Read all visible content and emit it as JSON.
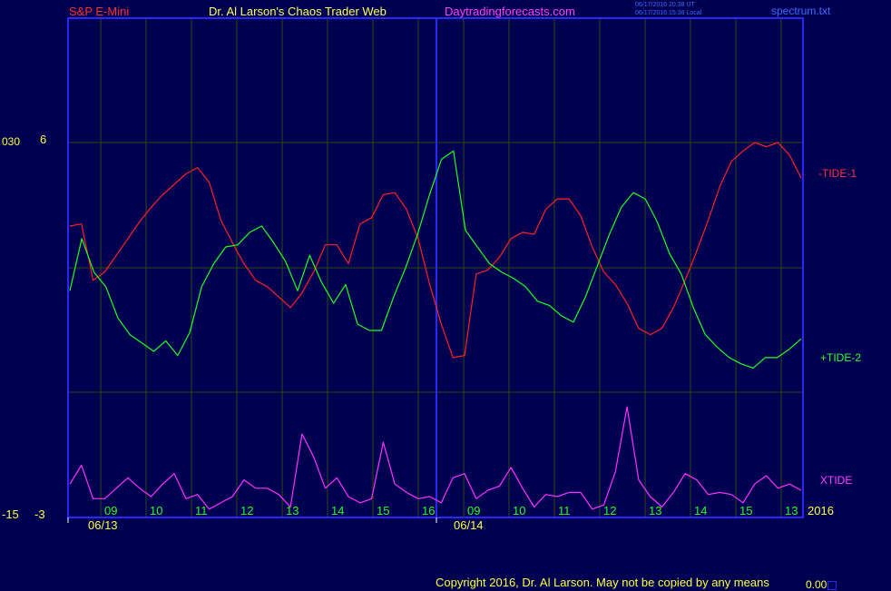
{
  "header": {
    "instrument": "S&P E-Mini",
    "site": "Dr. Al Larson's Chaos Trader Web",
    "url": "Daytradingforecasts.com",
    "timestamp_ut": "06/17/2016 20:38 UT",
    "timestamp_local": "06/17/2016 15:38 Local",
    "file": "spectrum.txt"
  },
  "footer": {
    "copyright": "Copyright 2016, Dr. Al Larson. May not be copied by any means",
    "corner_value": "0.00"
  },
  "colors": {
    "background": "#000050",
    "frame": "#2828ff",
    "grid": "#2b4a10",
    "tide1": "#ff2020",
    "tide2": "#20ff20",
    "xtide": "#ff30ff",
    "axis_text": "#ffff40",
    "hour_text": "#20ff20"
  },
  "chart_data": {
    "type": "line",
    "title": "",
    "xlabel": "",
    "ylabel": "",
    "grid": true,
    "y_left_labels": {
      "top_a": "030",
      "top_b": "6",
      "bottom_a": "-15",
      "bottom_b": "-3"
    },
    "year_label": "2016",
    "date_labels": [
      "06/13",
      "06/14"
    ],
    "hour_ticks": [
      "09",
      "10",
      "11",
      "12",
      "13",
      "14",
      "15",
      "16",
      "09",
      "10",
      "11",
      "12",
      "13",
      "14",
      "15",
      "13"
    ],
    "series": [
      {
        "name": "-TIDE-1",
        "upper_panel": true,
        "values": [
          2.0,
          2.1,
          -0.6,
          -0.2,
          0.6,
          1.4,
          2.2,
          2.9,
          3.5,
          4.0,
          4.5,
          4.8,
          4.1,
          2.3,
          1.2,
          0.2,
          -0.6,
          -0.9,
          -1.4,
          -1.9,
          -1.2,
          -0.2,
          1.1,
          1.1,
          0.2,
          2.1,
          2.4,
          3.5,
          3.6,
          2.8,
          1.4,
          -0.8,
          -2.7,
          -4.3,
          -4.2,
          -0.3,
          -0.1,
          0.5,
          1.4,
          1.7,
          1.6,
          2.8,
          3.3,
          3.3,
          2.5,
          1.0,
          -0.2,
          -0.8,
          -1.7,
          -2.9,
          -3.2,
          -2.9,
          -1.9,
          -0.6,
          0.8,
          2.3,
          3.9,
          5.1,
          5.6,
          6.0,
          5.8,
          6.0,
          5.4,
          4.3
        ]
      },
      {
        "name": "+TIDE-2",
        "upper_panel": true,
        "values": [
          -1.1,
          1.4,
          -0.2,
          -0.9,
          -2.4,
          -3.2,
          -3.6,
          -4.0,
          -3.5,
          -4.2,
          -3.1,
          -0.9,
          0.2,
          1.0,
          1.1,
          1.7,
          2.0,
          1.2,
          0.3,
          -1.1,
          0.6,
          -0.7,
          -1.7,
          -0.8,
          -2.7,
          -3.0,
          -3.0,
          -1.4,
          0.0,
          1.6,
          3.5,
          5.2,
          5.6,
          1.8,
          1.0,
          0.2,
          -0.2,
          -0.5,
          -0.9,
          -1.6,
          -1.8,
          -2.3,
          -2.6,
          -1.4,
          0.1,
          1.6,
          2.9,
          3.6,
          3.3,
          2.2,
          0.7,
          -0.3,
          -1.9,
          -3.2,
          -3.8,
          -4.3,
          -4.6,
          -4.8,
          -4.3,
          -4.3,
          -3.9,
          -3.4
        ]
      },
      {
        "name": "XTIDE",
        "upper_panel": false,
        "values": [
          -1.4,
          -0.5,
          -2.1,
          -2.1,
          -1.6,
          -1.1,
          -1.6,
          -2.0,
          -1.4,
          -0.9,
          -2.1,
          -1.9,
          -2.6,
          -2.3,
          -2.0,
          -1.2,
          -1.6,
          -1.6,
          -1.9,
          -2.5,
          1.0,
          -0.1,
          -1.6,
          -1.1,
          -2.0,
          -2.3,
          -2.1,
          0.6,
          -1.4,
          -1.8,
          -2.1,
          -2.0,
          -2.3,
          -1.1,
          -0.9,
          -2.1,
          -1.7,
          -1.5,
          -0.6,
          -1.6,
          -2.5,
          -1.9,
          -2.0,
          -1.8,
          -1.8,
          -2.6,
          -2.4,
          -0.8,
          2.3,
          -1.2,
          -2.0,
          -2.5,
          -1.8,
          -0.9,
          -1.2,
          -1.9,
          -1.8,
          -1.9,
          -2.3,
          -1.4,
          -1.0,
          -1.6,
          -1.4,
          -1.7
        ]
      }
    ]
  }
}
